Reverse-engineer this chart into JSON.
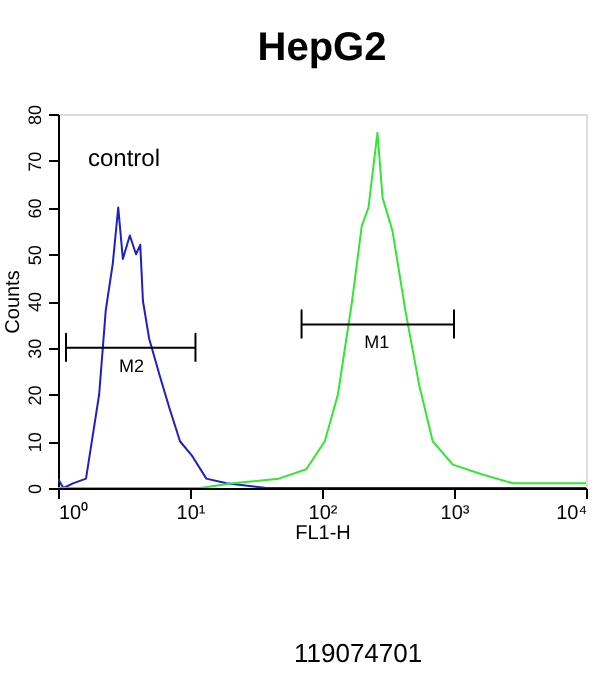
{
  "chart_data": {
    "type": "line",
    "title": "HepG2",
    "xlabel": "FL1-H",
    "ylabel": "Counts",
    "log": "x",
    "grid": false,
    "xlim": [
      1,
      10000
    ],
    "xticks": [
      {
        "value": 1,
        "label": "10⁰"
      },
      {
        "value": 10,
        "label": "10¹"
      },
      {
        "value": 100,
        "label": "10²"
      },
      {
        "value": 1000,
        "label": "10³"
      },
      {
        "value": 10000,
        "label": "10⁴"
      }
    ],
    "ylim": [
      0,
      80
    ],
    "yticks": [
      0,
      10,
      20,
      30,
      40,
      50,
      60,
      70,
      80
    ],
    "series": [
      {
        "color": "#1f1fc8",
        "x": [
          1,
          1.1,
          1.3,
          1.63,
          2.05,
          2.3,
          2.6,
          2.86,
          3.1,
          3.5,
          3.9,
          4.2,
          4.4,
          4.9,
          5.9,
          7.0,
          8.4,
          10.3,
          13.3,
          18.9,
          38,
          100,
          1000,
          10000
        ],
        "values": [
          2,
          0,
          1,
          2,
          20,
          38,
          48,
          60,
          49,
          54,
          50,
          52,
          40,
          32,
          24,
          17,
          10,
          7,
          2,
          1,
          0,
          0,
          0,
          0
        ]
      },
      {
        "color": "#33e633",
        "x": [
          1,
          12,
          21,
          47,
          76,
          105,
          132,
          169,
          200,
          225,
          263,
          288,
          342,
          428,
          545,
          690,
          980,
          1600,
          2800,
          10000
        ],
        "values": [
          0,
          0,
          1,
          2,
          4,
          10,
          20,
          40,
          56,
          60,
          76,
          62,
          55,
          38,
          22,
          10,
          5,
          3,
          1,
          1
        ]
      },
      {
        "color": "#000000",
        "x": [
          1.15,
          1.15,
          1.15,
          11,
          11,
          11
        ],
        "values": [
          27,
          33,
          30,
          30,
          33,
          27
        ]
      },
      {
        "color": "#000000",
        "x": [
          70,
          70,
          70,
          1000,
          1000,
          1000
        ],
        "values": [
          32,
          38,
          35,
          35,
          38,
          32
        ]
      }
    ],
    "annotations": [
      "control",
      {
        "text": "M2",
        "x": 3.6,
        "y": 30
      },
      {
        "text": "M1",
        "x": 260,
        "y": 35
      },
      "119074701"
    ]
  }
}
